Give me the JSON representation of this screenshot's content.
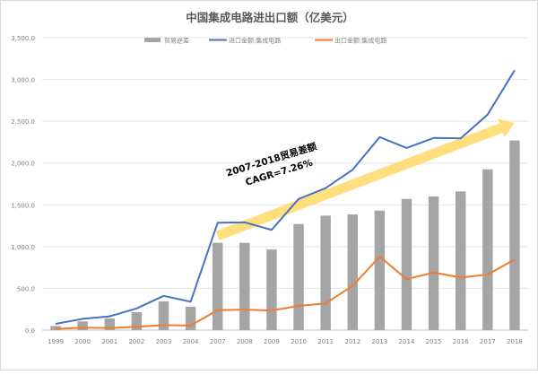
{
  "chart_data": {
    "type": "bar+line",
    "title": "中国集成电路进出口额（亿美元）",
    "categories": [
      "1999",
      "2000",
      "2001",
      "2002",
      "2003",
      "2004",
      "2007",
      "2008",
      "2009",
      "2010",
      "2011",
      "2012",
      "2013",
      "2014",
      "2015",
      "2016",
      "2017",
      "2018"
    ],
    "ylim": [
      0,
      3500
    ],
    "yticks": [
      "0.0",
      "500.0",
      "1,000.0",
      "1,500.0",
      "2,000.0",
      "2,500.0",
      "3,000.0",
      "3,500.0"
    ],
    "ytick_values": [
      0,
      500,
      1000,
      1500,
      2000,
      2500,
      3000,
      3500
    ],
    "grid": true,
    "legend_position": "top",
    "series": [
      {
        "name": "贸易逆差",
        "kind": "bar",
        "color": "#a5a5a5",
        "values": [
          50,
          105,
          140,
          215,
          345,
          280,
          1045,
          1045,
          965,
          1270,
          1370,
          1385,
          1430,
          1570,
          1600,
          1660,
          1925,
          2270
        ]
      },
      {
        "name": "进口金额:集成电路",
        "kind": "line",
        "color": "#4472c4",
        "values": [
          75,
          135,
          165,
          260,
          410,
          340,
          1285,
          1290,
          1200,
          1570,
          1700,
          1920,
          2310,
          2180,
          2300,
          2295,
          2580,
          3110
        ]
      },
      {
        "name": "出口金额:集成电路",
        "kind": "line",
        "color": "#ed7d31",
        "values": [
          15,
          30,
          25,
          40,
          60,
          55,
          240,
          245,
          235,
          290,
          320,
          530,
          880,
          610,
          690,
          630,
          665,
          845
        ]
      }
    ],
    "annotation": {
      "lines": [
        "2007-2018贸易差额",
        "CAGR=7.26%"
      ],
      "arrow_color": "#ffd966",
      "arrow_from": {
        "x": "2007",
        "y": 1130
      },
      "arrow_to": {
        "x": "2018",
        "y": 2480
      }
    }
  }
}
